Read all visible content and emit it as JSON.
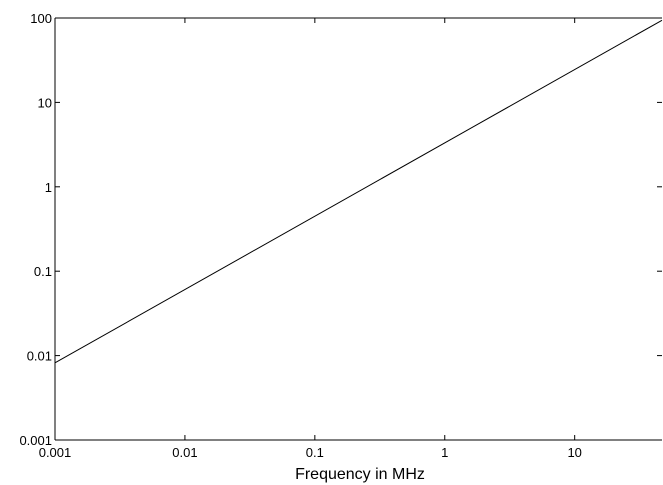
{
  "chart_data": {
    "type": "line",
    "title": "",
    "xlabel": "Frequency in MHz",
    "ylabel": "",
    "x_scale": "log",
    "y_scale": "log",
    "xlim": [
      0.001,
      47
    ],
    "ylim": [
      0.001,
      100
    ],
    "x_ticks": [
      {
        "value": 0.001,
        "label": "0.001"
      },
      {
        "value": 0.01,
        "label": "0.01"
      },
      {
        "value": 0.1,
        "label": "0.1"
      },
      {
        "value": 1,
        "label": "1"
      },
      {
        "value": 10,
        "label": "10"
      }
    ],
    "y_ticks": [
      {
        "value": 0.001,
        "label": "0.001"
      },
      {
        "value": 0.01,
        "label": "0.01"
      },
      {
        "value": 0.1,
        "label": "0.1"
      },
      {
        "value": 1,
        "label": "1"
      },
      {
        "value": 10,
        "label": "10"
      },
      {
        "value": 100,
        "label": "100"
      }
    ],
    "grid": false,
    "legend": "none",
    "line_color": "#000000",
    "series": [
      {
        "x": [
          0.001,
          47
        ],
        "y": [
          0.0082,
          94
        ]
      }
    ]
  }
}
